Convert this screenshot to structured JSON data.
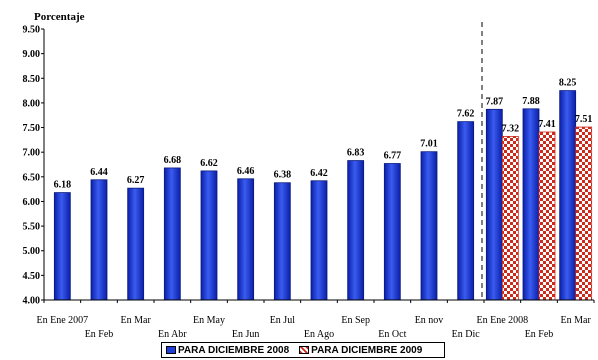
{
  "chart_data": {
    "type": "bar",
    "ylabel": "Porcentaje",
    "ylim": [
      4.0,
      9.5
    ],
    "yticks": [
      "4.00",
      "4.50",
      "5.00",
      "5.50",
      "6.00",
      "6.50",
      "7.00",
      "7.50",
      "8.00",
      "8.50",
      "9.00",
      "9.50"
    ],
    "categories": [
      {
        "top": "En Ene 2007",
        "bottom": ""
      },
      {
        "top": "",
        "bottom": "En Feb"
      },
      {
        "top": "En Mar",
        "bottom": ""
      },
      {
        "top": "",
        "bottom": "En Abr"
      },
      {
        "top": "En May",
        "bottom": ""
      },
      {
        "top": "",
        "bottom": "En Jun"
      },
      {
        "top": "En Jul",
        "bottom": ""
      },
      {
        "top": "",
        "bottom": "En Ago"
      },
      {
        "top": "En Sep",
        "bottom": ""
      },
      {
        "top": "",
        "bottom": "En Oct"
      },
      {
        "top": "En nov",
        "bottom": ""
      },
      {
        "top": "",
        "bottom": "En Dic"
      },
      {
        "top": "En Ene 2008",
        "bottom": ""
      },
      {
        "top": "",
        "bottom": "En Feb"
      },
      {
        "top": "En Mar",
        "bottom": ""
      }
    ],
    "series": [
      {
        "name": "PARA DICIEMBRE 2008",
        "color": "#1f3fd6",
        "values": [
          6.18,
          6.44,
          6.27,
          6.68,
          6.62,
          6.46,
          6.38,
          6.42,
          6.83,
          6.77,
          7.01,
          7.62,
          7.87,
          7.88,
          8.25
        ],
        "labels": [
          "6.18",
          "6.44",
          "6.27",
          "6.68",
          "6.62",
          "6.46",
          "6.38",
          "6.42",
          "6.83",
          "6.77",
          "7.01",
          "7.62",
          "7.87",
          "7.88",
          "8.25"
        ]
      },
      {
        "name": "PARA DICIEMBRE 2009",
        "color": "#cc2a1a",
        "values": [
          null,
          null,
          null,
          null,
          null,
          null,
          null,
          null,
          null,
          null,
          null,
          null,
          7.32,
          7.41,
          7.51
        ],
        "labels": [
          "",
          "",
          "",
          "",
          "",
          "",
          "",
          "",
          "",
          "",
          "",
          "",
          "7.32",
          "7.41",
          "7.51"
        ]
      }
    ],
    "grid": false,
    "legend": "bottom",
    "divider_after_category": 11
  },
  "legend": {
    "item1": "PARA DICIEMBRE 2008",
    "item2": "PARA DICIEMBRE 2009"
  }
}
